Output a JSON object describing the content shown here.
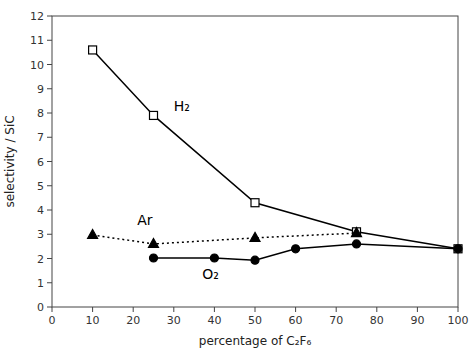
{
  "chart_data": {
    "type": "line",
    "xlabel": "percentage of C₂F₆",
    "ylabel": "selectivity / SiC",
    "xlim": [
      0,
      100
    ],
    "ylim": [
      0,
      12
    ],
    "xticks": [
      0,
      10,
      20,
      30,
      40,
      50,
      60,
      70,
      80,
      90,
      100
    ],
    "yticks": [
      0,
      1,
      2,
      3,
      4,
      5,
      6,
      7,
      8,
      9,
      10,
      11,
      12
    ],
    "grid": false,
    "series": [
      {
        "x": [
          10,
          25,
          50,
          75,
          100
        ],
        "values": [
          10.6,
          7.9,
          4.3,
          3.1,
          2.4
        ],
        "color": "#000000",
        "marker": "open-square",
        "line_style": "solid"
      },
      {
        "x": [
          10,
          25,
          50,
          75
        ],
        "values": [
          2.97,
          2.6,
          2.85,
          3.05
        ],
        "color": "#000000",
        "marker": "triangle",
        "line_style": "dotted"
      },
      {
        "x": [
          25,
          40,
          50,
          60,
          75,
          100
        ],
        "values": [
          2.02,
          2.02,
          1.93,
          2.4,
          2.6,
          2.4
        ],
        "color": "#000000",
        "marker": "circle",
        "line_style": "solid"
      }
    ],
    "annotations": [
      {
        "text": "H₂",
        "x": 30,
        "y": 8.1
      },
      {
        "text": "Ar",
        "x": 21,
        "y": 3.4
      },
      {
        "text": "O₂",
        "x": 37,
        "y": 1.15
      }
    ]
  }
}
